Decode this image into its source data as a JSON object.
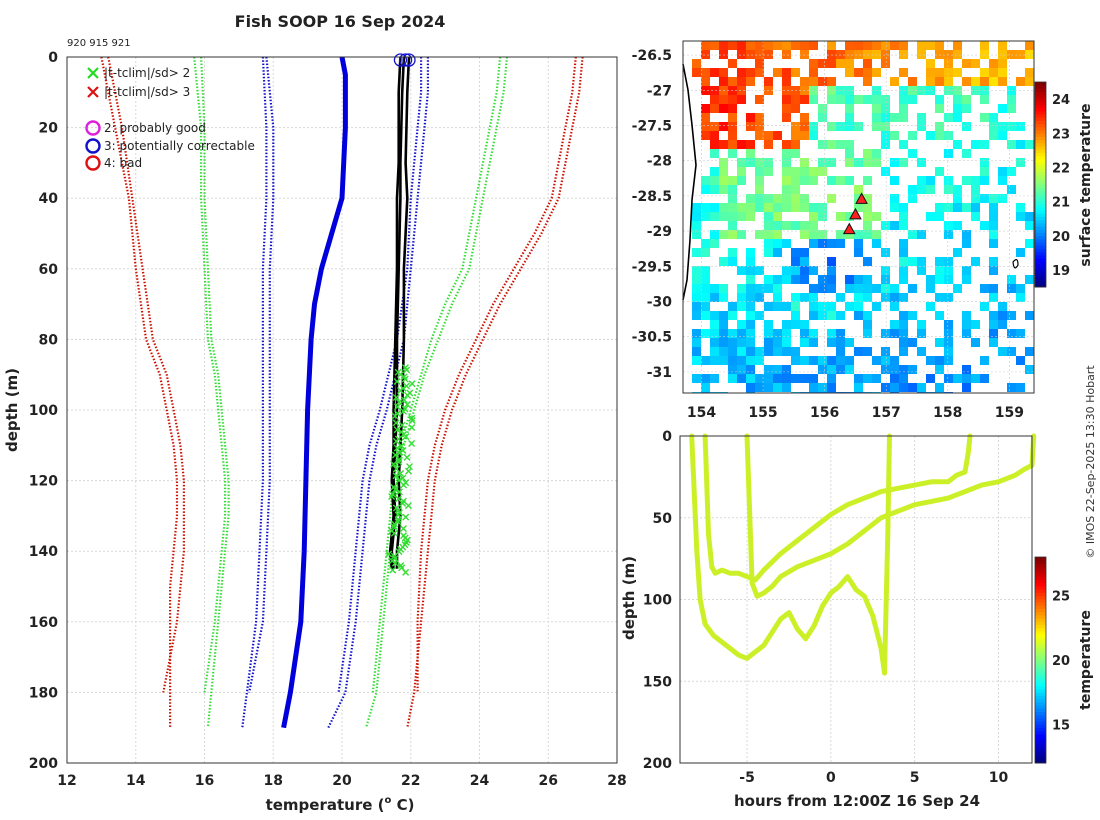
{
  "title": "Fish SOOP 16 Sep 2024",
  "profile_ids": "920 915 921",
  "credit": "© IMOS 22-Sep-2025 13:30 Hobart",
  "chart_data": [
    {
      "type": "line",
      "name": "profile",
      "xlabel": "temperature (",
      "xlabel_sup": "o",
      "xlabel_end": " C)",
      "ylabel": "depth (m)",
      "xlim": [
        12,
        28
      ],
      "ylim": [
        0,
        200
      ],
      "xticks": [
        "12",
        "14",
        "16",
        "18",
        "20",
        "22",
        "24",
        "26",
        "28"
      ],
      "yticks": [
        "0",
        "20",
        "40",
        "60",
        "80",
        "100",
        "120",
        "140",
        "160",
        "180",
        "200"
      ],
      "legend": [
        {
          "label": "|t-tclim|/sd> 2",
          "color": "#22dd22",
          "marker": "x"
        },
        {
          "label": "|t-tclim|/sd> 3",
          "color": "#dd1111",
          "marker": "x"
        },
        {
          "label": "2: probably good",
          "color": "#dd22dd",
          "marker": "o"
        },
        {
          "label": "3: potentially correctable",
          "color": "#1111cc",
          "marker": "o"
        },
        {
          "label": "4: bad",
          "color": "#dd1111",
          "marker": "o"
        }
      ],
      "series": [
        {
          "name": "clim -3sd a",
          "color": "#cc1100",
          "style": "dotted",
          "depth": [
            0,
            20,
            40,
            60,
            80,
            90,
            100,
            110,
            120,
            130,
            140,
            160,
            180
          ],
          "temp": [
            13.2,
            13.6,
            13.9,
            14.2,
            14.5,
            14.9,
            15.1,
            15.3,
            15.4,
            15.4,
            15.4,
            15.2,
            14.8
          ]
        },
        {
          "name": "clim -3sd b",
          "color": "#cc1100",
          "style": "dotted",
          "depth": [
            0,
            20,
            40,
            60,
            80,
            90,
            100,
            110,
            120,
            130,
            140,
            150,
            170,
            190
          ],
          "temp": [
            13.0,
            13.4,
            13.8,
            14.0,
            14.3,
            14.7,
            14.9,
            15.1,
            15.2,
            15.2,
            15.1,
            15.0,
            15.0,
            15.0
          ]
        },
        {
          "name": "clim -2sd a",
          "color": "#33dd33",
          "style": "dotted",
          "depth": [
            0,
            20,
            40,
            60,
            80,
            90,
            100,
            110,
            120,
            130,
            140,
            160,
            180
          ],
          "temp": [
            15.7,
            15.9,
            15.9,
            16.0,
            16.1,
            16.3,
            16.4,
            16.5,
            16.6,
            16.6,
            16.5,
            16.3,
            16.0
          ]
        },
        {
          "name": "clim -2sd b",
          "color": "#33dd33",
          "style": "dotted",
          "depth": [
            0,
            20,
            40,
            60,
            80,
            90,
            100,
            110,
            120,
            130,
            140,
            160,
            190
          ],
          "temp": [
            15.9,
            16.0,
            16.0,
            16.1,
            16.2,
            16.4,
            16.5,
            16.6,
            16.7,
            16.7,
            16.6,
            16.4,
            16.1
          ]
        },
        {
          "name": "clim -1sd a",
          "color": "#1111cc",
          "style": "dotted",
          "depth": [
            0,
            20,
            40,
            60,
            80,
            100,
            120,
            140,
            160,
            180
          ],
          "temp": [
            17.8,
            18.0,
            18.0,
            17.9,
            17.9,
            17.9,
            17.9,
            17.8,
            17.7,
            17.3
          ]
        },
        {
          "name": "clim -1sd b",
          "color": "#1111cc",
          "style": "dotted",
          "depth": [
            0,
            20,
            40,
            60,
            80,
            100,
            120,
            140,
            160,
            190
          ],
          "temp": [
            17.7,
            17.8,
            17.8,
            17.7,
            17.7,
            17.7,
            17.7,
            17.6,
            17.5,
            17.1
          ]
        },
        {
          "name": "climatology mean",
          "color": "#0000dd",
          "style": "solid",
          "depth": [
            0,
            5,
            20,
            40,
            50,
            60,
            70,
            80,
            100,
            120,
            140,
            160,
            180,
            190
          ],
          "temp": [
            20.0,
            20.1,
            20.1,
            20.0,
            19.7,
            19.4,
            19.2,
            19.1,
            19.0,
            18.95,
            18.9,
            18.8,
            18.5,
            18.3
          ]
        },
        {
          "name": "clim +1sd a",
          "color": "#1111cc",
          "style": "dotted",
          "depth": [
            0,
            10,
            20,
            40,
            60,
            80,
            100,
            110,
            120,
            140,
            160,
            180,
            190
          ],
          "temp": [
            22.5,
            22.5,
            22.4,
            22.2,
            22.0,
            21.8,
            21.3,
            21.0,
            20.8,
            20.6,
            20.4,
            20.1,
            19.6
          ]
        },
        {
          "name": "clim +1sd b",
          "color": "#1111cc",
          "style": "dotted",
          "depth": [
            0,
            10,
            20,
            40,
            60,
            80,
            100,
            110,
            120,
            140,
            160,
            180
          ],
          "temp": [
            22.3,
            22.3,
            22.2,
            22.0,
            21.9,
            21.6,
            21.1,
            20.8,
            20.6,
            20.4,
            20.2,
            19.9
          ]
        },
        {
          "name": "clim +2sd a",
          "color": "#33dd33",
          "style": "dotted",
          "depth": [
            0,
            10,
            20,
            40,
            60,
            70,
            80,
            90,
            100,
            110,
            120,
            140,
            160,
            180,
            190
          ],
          "temp": [
            24.8,
            24.7,
            24.5,
            24.1,
            23.7,
            23.2,
            22.8,
            22.4,
            22.1,
            21.8,
            21.6,
            21.4,
            21.2,
            21.0,
            20.7
          ]
        },
        {
          "name": "clim +2sd b",
          "color": "#33dd33",
          "style": "dotted",
          "depth": [
            0,
            10,
            20,
            40,
            60,
            70,
            80,
            90,
            100,
            110,
            120,
            140,
            160,
            180
          ],
          "temp": [
            24.6,
            24.5,
            24.3,
            23.9,
            23.5,
            23.0,
            22.6,
            22.3,
            22.0,
            21.7,
            21.5,
            21.3,
            21.1,
            20.9
          ]
        },
        {
          "name": "clim +3sd a",
          "color": "#cc1100",
          "style": "dotted",
          "depth": [
            0,
            10,
            20,
            40,
            50,
            60,
            70,
            80,
            90,
            100,
            110,
            120,
            130,
            140,
            160,
            180,
            190
          ],
          "temp": [
            27.0,
            26.9,
            26.7,
            26.3,
            25.8,
            25.2,
            24.6,
            24.1,
            23.6,
            23.2,
            22.9,
            22.7,
            22.6,
            22.5,
            22.3,
            22.1,
            21.9
          ]
        },
        {
          "name": "clim +3sd b",
          "color": "#cc1100",
          "style": "dotted",
          "depth": [
            0,
            10,
            20,
            40,
            50,
            60,
            70,
            80,
            90,
            100,
            110,
            120,
            130,
            140,
            160,
            180
          ],
          "temp": [
            26.8,
            26.7,
            26.5,
            26.1,
            25.6,
            25.0,
            24.4,
            23.9,
            23.4,
            23.0,
            22.7,
            22.5,
            22.4,
            22.3,
            22.2,
            22.2
          ]
        },
        {
          "name": "profile 920",
          "color": "#000000",
          "style": "solid",
          "depth": [
            0,
            10,
            30,
            40,
            60,
            80,
            100,
            110,
            120,
            130,
            140,
            145
          ],
          "temp": [
            21.95,
            21.9,
            21.85,
            21.9,
            21.8,
            21.8,
            21.75,
            21.7,
            21.65,
            21.7,
            21.6,
            21.6
          ]
        },
        {
          "name": "profile 915",
          "color": "#000000",
          "style": "solid",
          "depth": [
            0,
            10,
            30,
            40,
            60,
            80,
            100,
            110,
            120,
            130,
            140,
            145
          ],
          "temp": [
            21.8,
            21.75,
            21.7,
            21.7,
            21.65,
            21.6,
            21.6,
            21.55,
            21.5,
            21.55,
            21.45,
            21.5
          ]
        },
        {
          "name": "profile 921",
          "color": "#000000",
          "style": "solid",
          "depth": [
            0,
            10,
            30,
            40,
            60,
            80,
            100,
            110,
            120,
            130,
            140,
            145
          ],
          "temp": [
            21.7,
            21.65,
            21.65,
            21.6,
            21.6,
            21.55,
            21.5,
            21.5,
            21.45,
            21.5,
            21.4,
            21.45
          ]
        }
      ],
      "flag_markers": {
        "color": "#33dd33",
        "depth_range": [
          88,
          146
        ],
        "temp_range": [
          21.3,
          22.1
        ]
      },
      "qc_circles": {
        "color": "#1111cc",
        "depth": 0,
        "temp": [
          21.7,
          21.85,
          21.95
        ]
      }
    },
    {
      "type": "heatmap",
      "name": "map",
      "xlim": [
        153.7,
        159.4
      ],
      "ylim": [
        -31.3,
        -26.3
      ],
      "xticks": [
        "154",
        "155",
        "156",
        "157",
        "158",
        "159"
      ],
      "yticks": [
        "-26.5",
        "-27",
        "-27.5",
        "-28",
        "-28.5",
        "-29",
        "-29.5",
        "-30",
        "-30.5",
        "-31"
      ],
      "colorbar_label": "surface temperature",
      "colorbar_ticks": [
        "19",
        "20",
        "21",
        "22",
        "23",
        "24"
      ],
      "clim": [
        18.5,
        24.5
      ],
      "stations": [
        {
          "lon": 156.6,
          "lat": -28.55
        },
        {
          "lon": 156.5,
          "lat": -28.77
        },
        {
          "lon": 156.4,
          "lat": -28.98
        }
      ]
    },
    {
      "type": "line",
      "name": "section",
      "xlabel": "hours from 12:00Z 16 Sep 24",
      "ylabel": "depth (m)",
      "xlim": [
        -9,
        12
      ],
      "ylim": [
        0,
        200
      ],
      "xticks": [
        "-5",
        "0",
        "5",
        "10"
      ],
      "yticks": [
        "0",
        "50",
        "100",
        "150",
        "200"
      ],
      "colorbar_label": "temperature",
      "colorbar_ticks": [
        "15",
        "20",
        "25"
      ],
      "clim": [
        12,
        28
      ],
      "trace_color": "#ccf028",
      "tracks": [
        {
          "hours": [
            -8.3,
            -8.0,
            -7.8,
            -7.5,
            -7.0,
            -6.5,
            -6.0,
            -5.5,
            -5.0,
            -4.5,
            -4.0,
            -3.5,
            -3.0,
            -2.5,
            -2.0,
            -1.5,
            -1.0,
            -0.5,
            0.0,
            0.5,
            1.0,
            1.5,
            2.0,
            2.5,
            3.0,
            3.2,
            3.4,
            3.5
          ],
          "depth": [
            0,
            70,
            100,
            115,
            122,
            126,
            130,
            134,
            136,
            132,
            128,
            120,
            112,
            108,
            118,
            124,
            116,
            104,
            96,
            92,
            86,
            94,
            98,
            110,
            130,
            145,
            60,
            0
          ]
        },
        {
          "hours": [
            -7.5,
            -7.3,
            -7.1,
            -6.9,
            -6.5,
            -6.0,
            -5.5,
            -5.0,
            -4.5,
            -4.0,
            -3.0,
            -2.0,
            -1.0,
            0.0,
            1.0,
            2.0,
            2.5,
            3.0,
            4.0,
            5.0,
            6.0,
            7.0,
            7.5,
            8.0,
            8.2,
            8.3
          ],
          "depth": [
            0,
            60,
            80,
            84,
            82,
            84,
            84,
            86,
            88,
            82,
            72,
            64,
            56,
            48,
            42,
            38,
            36,
            34,
            32,
            30,
            28,
            28,
            24,
            22,
            10,
            0
          ]
        },
        {
          "hours": [
            -5.0,
            -4.7,
            -4.4,
            -4.0,
            -3.5,
            -3.0,
            -2.0,
            -1.0,
            0.0,
            1.0,
            2.0,
            3.0,
            4.0,
            5.0,
            6.0,
            7.0,
            8.0,
            9.0,
            10.0,
            11.0,
            11.6,
            12.0,
            12.1
          ],
          "depth": [
            0,
            90,
            98,
            96,
            92,
            86,
            80,
            76,
            72,
            66,
            58,
            50,
            46,
            42,
            40,
            38,
            34,
            30,
            28,
            24,
            20,
            18,
            0
          ]
        }
      ]
    }
  ]
}
